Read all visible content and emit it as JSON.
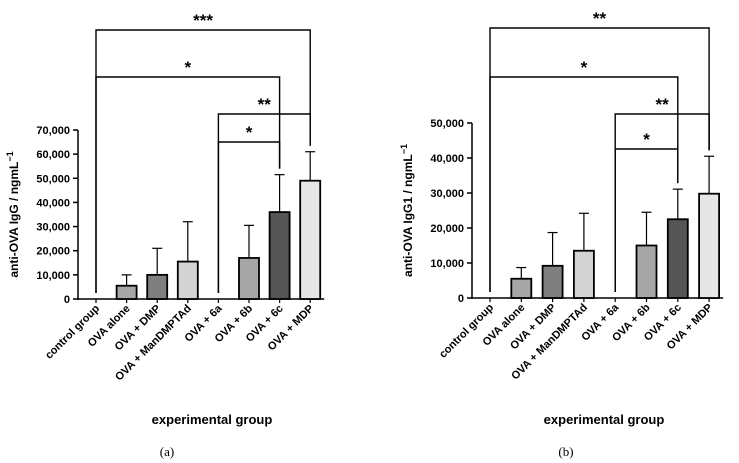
{
  "chart_data": [
    {
      "type": "bar",
      "panel_label": "(a)",
      "title": "",
      "xlabel": "experimental group",
      "ylabel": "anti-OVA IgG / ngmL",
      "ylabel_sup": "−1",
      "ylim": [
        0,
        70000
      ],
      "yticks": [
        "0",
        "10,000",
        "20,000",
        "30,000",
        "40,000",
        "50,000",
        "60,000",
        "70,000"
      ],
      "ytick_values": [
        0,
        10000,
        20000,
        30000,
        40000,
        50000,
        60000,
        70000
      ],
      "categories": [
        "control group",
        "OVA alone",
        "OVA + DMP",
        "OVA + ManDMPTAd",
        "OVA + 6a",
        "OVA + 6b",
        "OVA + 6c",
        "OVA + MDP"
      ],
      "values": [
        0,
        5500,
        10000,
        15500,
        0,
        17000,
        36000,
        49000
      ],
      "errors": [
        0,
        4500,
        11000,
        16500,
        0,
        13500,
        15500,
        12000
      ],
      "bar_colors": [
        "#ffffff",
        "#a6a6a6",
        "#7f7f7f",
        "#d3d3d3",
        "#ffffff",
        "#a6a6a6",
        "#555555",
        "#e6e6e6"
      ],
      "significance": [
        {
          "from": 0,
          "to": 7,
          "label": "***"
        },
        {
          "from": 0,
          "to": 6,
          "label": "*"
        },
        {
          "from": 4,
          "to": 7,
          "label": "**"
        },
        {
          "from": 4,
          "to": 6,
          "label": "*"
        }
      ]
    },
    {
      "type": "bar",
      "panel_label": "(b)",
      "title": "",
      "xlabel": "experimental group",
      "ylabel": "anti-OVA IgG1 / ngmL",
      "ylabel_sup": "−1",
      "ylim": [
        0,
        50000
      ],
      "yticks": [
        "0",
        "10,000",
        "20,000",
        "30,000",
        "40,000",
        "50,000"
      ],
      "ytick_values": [
        0,
        10000,
        20000,
        30000,
        40000,
        50000
      ],
      "categories": [
        "control group",
        "OVA alone",
        "OVA + DMP",
        "OVA + ManDMPTAd",
        "OVA + 6a",
        "OVA + 6b",
        "OVA + 6c",
        "OVA + MDP"
      ],
      "values": [
        0,
        5500,
        9200,
        13500,
        0,
        15000,
        22500,
        29800
      ],
      "errors": [
        0,
        3200,
        9500,
        10700,
        0,
        9500,
        8600,
        10700
      ],
      "bar_colors": [
        "#ffffff",
        "#a6a6a6",
        "#7f7f7f",
        "#d3d3d3",
        "#ffffff",
        "#a6a6a6",
        "#555555",
        "#e6e6e6"
      ],
      "significance": [
        {
          "from": 0,
          "to": 7,
          "label": "**"
        },
        {
          "from": 0,
          "to": 6,
          "label": "*"
        },
        {
          "from": 4,
          "to": 7,
          "label": "**"
        },
        {
          "from": 4,
          "to": 6,
          "label": "*"
        }
      ]
    }
  ]
}
